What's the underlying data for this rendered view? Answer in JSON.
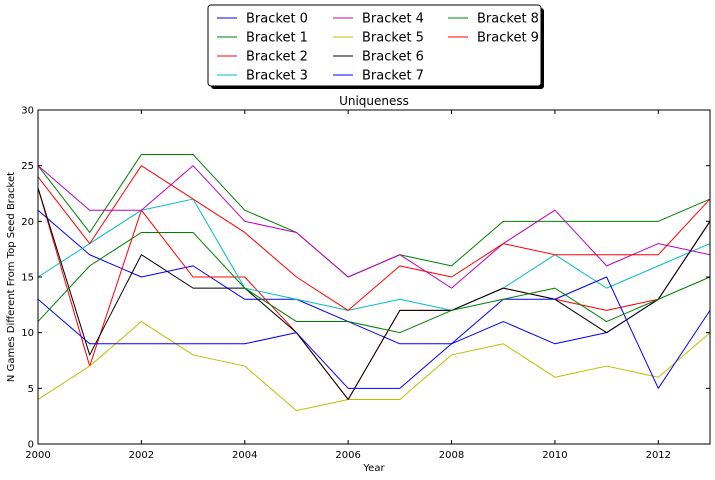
{
  "chart_data": {
    "type": "line",
    "title": "Uniqueness",
    "xlabel": "Year",
    "ylabel": "N Games Different From Top Seed Bracket",
    "xlim": [
      2000,
      2013
    ],
    "ylim": [
      0,
      30
    ],
    "x": [
      2000,
      2001,
      2002,
      2003,
      2004,
      2005,
      2006,
      2007,
      2008,
      2009,
      2010,
      2011,
      2012,
      2013
    ],
    "xticks": [
      "2000",
      "2002",
      "2004",
      "2006",
      "2008",
      "2010",
      "2012"
    ],
    "yticks": [
      "0",
      "5",
      "10",
      "15",
      "20",
      "25",
      "30"
    ],
    "grid": false,
    "legend_position": "top-center-outside",
    "series": [
      {
        "name": "Bracket 0",
        "color": "#0000ff",
        "values": [
          21,
          17,
          15,
          16,
          13,
          13,
          11,
          9,
          9,
          11,
          9,
          10,
          13,
          20
        ]
      },
      {
        "name": "Bracket 1",
        "color": "#008000",
        "values": [
          25,
          19,
          26,
          26,
          21,
          19,
          15,
          17,
          16,
          20,
          20,
          20,
          20,
          22
        ]
      },
      {
        "name": "Bracket 2",
        "color": "#ff0000",
        "values": [
          23,
          7,
          21,
          15,
          15,
          10,
          4,
          12,
          12,
          14,
          13,
          12,
          13,
          20
        ]
      },
      {
        "name": "Bracket 3",
        "color": "#00bfbf",
        "values": [
          15,
          18,
          21,
          22,
          14,
          13,
          12,
          13,
          12,
          14,
          17,
          14,
          16,
          18
        ]
      },
      {
        "name": "Bracket 4",
        "color": "#bf00bf",
        "values": [
          25,
          21,
          21,
          25,
          20,
          19,
          15,
          17,
          14,
          18,
          21,
          16,
          18,
          17
        ]
      },
      {
        "name": "Bracket 5",
        "color": "#bfbf00",
        "values": [
          4,
          7,
          11,
          8,
          7,
          3,
          4,
          4,
          8,
          9,
          6,
          7,
          6,
          10
        ]
      },
      {
        "name": "Bracket 6",
        "color": "#000000",
        "values": [
          23,
          8,
          17,
          14,
          14,
          10,
          4,
          12,
          12,
          14,
          13,
          10,
          13,
          20
        ]
      },
      {
        "name": "Bracket 7",
        "color": "#0000ff",
        "values": [
          13,
          9,
          9,
          9,
          9,
          10,
          5,
          5,
          9,
          13,
          13,
          15,
          5,
          12
        ]
      },
      {
        "name": "Bracket 8",
        "color": "#008000",
        "values": [
          11,
          16,
          19,
          19,
          14,
          11,
          11,
          10,
          12,
          13,
          14,
          11,
          13,
          15
        ]
      },
      {
        "name": "Bracket 9",
        "color": "#ff0000",
        "values": [
          24,
          18,
          25,
          22,
          19,
          15,
          12,
          16,
          15,
          18,
          17,
          17,
          17,
          22
        ]
      }
    ]
  }
}
